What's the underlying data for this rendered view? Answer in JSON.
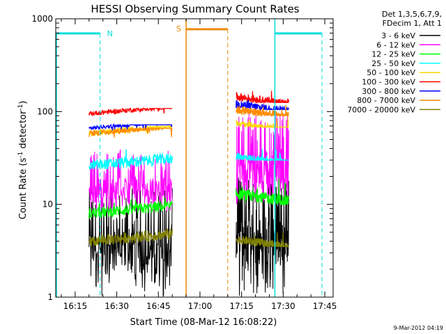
{
  "chart_data": {
    "type": "line",
    "title": "HESSI Observing Summary Count Rates",
    "xlabel": "Start Time (08-Mar-12 16:08:22)",
    "ylabel_main": "Count Rate (s",
    "ylabel_sup1": "-1",
    "ylabel_mid": " detector",
    "ylabel_sup2": "-1",
    "ylabel_end": ")",
    "yscale": "log",
    "ylim": [
      1,
      1000
    ],
    "xlim": [
      "16:08",
      "17:48"
    ],
    "x_ticks": [
      "16:15",
      "16:30",
      "16:45",
      "17:00",
      "17:15",
      "17:30",
      "17:45"
    ],
    "y_ticks": [
      "1",
      "10",
      "100",
      "1000"
    ],
    "legend": {
      "placement": "outside-right",
      "header": [
        "Det 1,3,5,6,7,9,",
        "FDecim 1, Att 1"
      ],
      "entries": [
        {
          "label": "3 - 6 keV",
          "color": "#000000"
        },
        {
          "label": "6 - 12 keV",
          "color": "#ff00ff"
        },
        {
          "label": "12 - 25 keV",
          "color": "#00ff00"
        },
        {
          "label": "25 - 50 keV",
          "color": "#00ffff"
        },
        {
          "label": "50 - 100 keV",
          "color": "#ffd700"
        },
        {
          "label": "100 - 300 keV",
          "color": "#ff0000"
        },
        {
          "label": "300 - 800 keV",
          "color": "#0000ff"
        },
        {
          "label": "800 - 7000 keV",
          "color": "#ff8c00"
        },
        {
          "label": "7000 - 20000 keV",
          "color": "#808000"
        }
      ]
    },
    "flags": [
      {
        "label": "",
        "color": "#00dddd",
        "start": "16:08",
        "end": "16:24",
        "style": "solid-edge-dashed-end"
      },
      {
        "label": "N",
        "color": "#00dddd",
        "marker_at": "16:25"
      },
      {
        "label": "S",
        "color": "#ee8800",
        "start": "16:55",
        "end": "17:10",
        "style": "orange-bar"
      },
      {
        "label": "",
        "color": "#00dddd",
        "start": "17:27",
        "end": "17:44",
        "style": "solid-edge-dashed-end"
      }
    ],
    "series": [
      {
        "name": "3 - 6 keV",
        "color": "#000000",
        "segments": [
          {
            "start": "16:20",
            "end": "16:50",
            "approx_level": 3,
            "range": [
              1,
              15
            ]
          },
          {
            "start": "17:13",
            "end": "17:32",
            "approx_level": 4,
            "range": [
              1,
              20
            ]
          }
        ]
      },
      {
        "name": "6 - 12 keV",
        "color": "#ff00ff",
        "segments": [
          {
            "start": "16:20",
            "end": "16:50",
            "approx_level": 14,
            "range": [
              8,
              40
            ]
          },
          {
            "start": "17:13",
            "end": "17:32",
            "approx_level": 22,
            "range": [
              10,
              100
            ]
          }
        ]
      },
      {
        "name": "12 - 25 keV",
        "color": "#00ff00",
        "segments": [
          {
            "start": "16:20",
            "end": "16:50",
            "approx_level": 8,
            "range": [
              7,
              12
            ]
          },
          {
            "start": "17:13",
            "end": "17:32",
            "approx_level": 13,
            "range": [
              10,
              20
            ]
          }
        ]
      },
      {
        "name": "25 - 50 keV",
        "color": "#00ffff",
        "segments": [
          {
            "start": "16:20",
            "end": "16:50",
            "approx_level": 26,
            "range": [
              24,
              50
            ]
          },
          {
            "start": "17:13",
            "end": "17:32",
            "approx_level": 33,
            "range": [
              30,
              40
            ]
          }
        ]
      },
      {
        "name": "50 - 100 keV",
        "color": "#ffd700",
        "segments": [
          {
            "start": "16:20",
            "end": "16:50",
            "approx_level": 58,
            "range": [
              55,
              70
            ]
          },
          {
            "start": "17:13",
            "end": "17:32",
            "approx_level": 75,
            "range": [
              68,
              85
            ]
          }
        ]
      },
      {
        "name": "100 - 300 keV",
        "color": "#ff0000",
        "segments": [
          {
            "start": "16:20",
            "end": "16:50",
            "approx_level": 95,
            "range": [
              88,
              108
            ]
          },
          {
            "start": "17:13",
            "end": "17:32",
            "approx_level": 145,
            "range": [
              125,
              175
            ]
          }
        ]
      },
      {
        "name": "300 - 800 keV",
        "color": "#0000ff",
        "segments": [
          {
            "start": "16:20",
            "end": "16:50",
            "approx_level": 66,
            "range": [
              62,
              72
            ]
          },
          {
            "start": "17:13",
            "end": "17:32",
            "approx_level": 120,
            "range": [
              105,
              150
            ]
          }
        ]
      },
      {
        "name": "800 - 7000 keV",
        "color": "#ff8c00",
        "segments": [
          {
            "start": "16:20",
            "end": "16:50",
            "approx_level": 58,
            "range": [
              52,
              66
            ]
          },
          {
            "start": "17:13",
            "end": "17:32",
            "approx_level": 105,
            "range": [
              90,
              130
            ]
          }
        ]
      },
      {
        "name": "7000 - 20000 keV",
        "color": "#808000",
        "segments": [
          {
            "start": "16:20",
            "end": "16:50",
            "approx_level": 4,
            "range": [
              3,
              6
            ]
          },
          {
            "start": "17:13",
            "end": "17:32",
            "approx_level": 4.2,
            "range": [
              3.5,
              5
            ]
          }
        ]
      }
    ]
  },
  "timestamp": "9-Mar-2012 04:19"
}
